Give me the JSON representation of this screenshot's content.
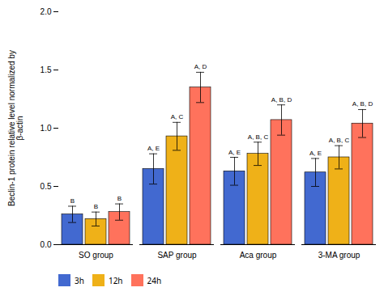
{
  "chart_data": {
    "type": "bar",
    "categories": [
      "SO group",
      "SAP group",
      "Aca group",
      "3-MA group"
    ],
    "series": [
      {
        "name": "3h",
        "values": [
          0.26,
          0.65,
          0.63,
          0.62
        ],
        "errors": [
          0.07,
          0.13,
          0.12,
          0.12
        ],
        "annotations": [
          "B",
          "A, E",
          "A, E",
          "A, E"
        ]
      },
      {
        "name": "12h",
        "values": [
          0.22,
          0.93,
          0.78,
          0.75
        ],
        "errors": [
          0.06,
          0.12,
          0.1,
          0.1
        ],
        "annotations": [
          "B",
          "A, C",
          "A, B, C",
          "A, B, C"
        ]
      },
      {
        "name": "24h",
        "values": [
          0.28,
          1.35,
          1.07,
          1.04
        ],
        "errors": [
          0.07,
          0.13,
          0.13,
          0.12
        ],
        "annotations": [
          "B",
          "A, D",
          "A, B, D",
          "A, B, D"
        ]
      }
    ],
    "ylabel": "Beclin-1 protein relative level normalized by\nβ-actin",
    "ylim": [
      0.0,
      2.0
    ],
    "yticks": [
      {
        "value": 0.0,
        "label": "0.0"
      },
      0.5,
      {
        "value": 1.0,
        "label": "1.0"
      },
      1.5,
      {
        "value": 2.0,
        "label": "2.0"
      }
    ],
    "grid": false,
    "legend": "bottom"
  }
}
